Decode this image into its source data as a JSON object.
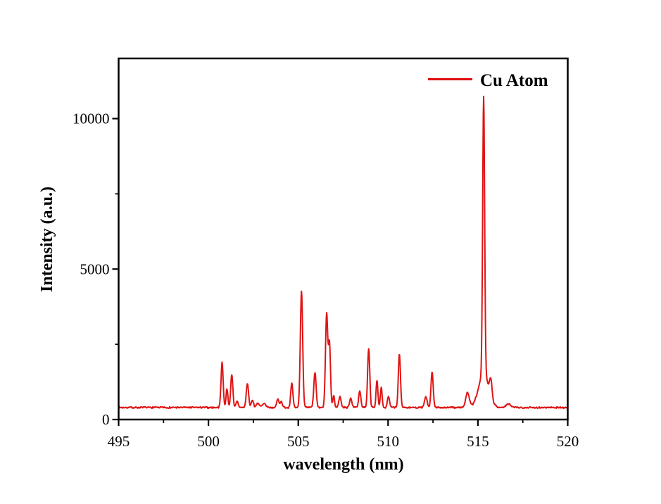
{
  "figure": {
    "background_color": "#ffffff",
    "axis_color": "#000000"
  },
  "chart_data": {
    "type": "line",
    "title": "",
    "xlabel": "wavelength (nm)",
    "ylabel": "Intensity (a.u.)",
    "xlim": [
      495,
      520
    ],
    "ylim": [
      0,
      12000
    ],
    "x_major_ticks": [
      495,
      500,
      505,
      510,
      515,
      520
    ],
    "x_minor_step": 2.5,
    "y_major_ticks": [
      0,
      5000,
      10000
    ],
    "y_minor_step": 2500,
    "grid": false,
    "frame": "box",
    "legend": {
      "position": "top-right",
      "entries": [
        {
          "label": "Cu Atom",
          "color": "#e01414"
        }
      ]
    },
    "series": [
      {
        "name": "Cu Atom",
        "color": "#e01414",
        "baseline_intensity": 400,
        "noise_amplitude": 30,
        "peaks": [
          {
            "wl": 500.76,
            "intensity": 1890,
            "width": 0.06
          },
          {
            "wl": 501.03,
            "intensity": 1030,
            "width": 0.05
          },
          {
            "wl": 501.3,
            "intensity": 1495,
            "width": 0.06
          },
          {
            "wl": 501.6,
            "intensity": 600,
            "width": 0.06
          },
          {
            "wl": 502.17,
            "intensity": 1190,
            "width": 0.065
          },
          {
            "wl": 502.45,
            "intensity": 650,
            "width": 0.06
          },
          {
            "wl": 502.75,
            "intensity": 545,
            "width": 0.08
          },
          {
            "wl": 503.1,
            "intensity": 520,
            "width": 0.1
          },
          {
            "wl": 503.86,
            "intensity": 680,
            "width": 0.06
          },
          {
            "wl": 504.05,
            "intensity": 610,
            "width": 0.06
          },
          {
            "wl": 504.64,
            "intensity": 1190,
            "width": 0.06
          },
          {
            "wl": 505.18,
            "intensity": 4280,
            "width": 0.065
          },
          {
            "wl": 505.93,
            "intensity": 1550,
            "width": 0.065
          },
          {
            "wl": 506.58,
            "intensity": 3500,
            "width": 0.065
          },
          {
            "wl": 506.74,
            "intensity": 2480,
            "width": 0.055
          },
          {
            "wl": 506.97,
            "intensity": 795,
            "width": 0.05
          },
          {
            "wl": 507.32,
            "intensity": 770,
            "width": 0.06
          },
          {
            "wl": 507.92,
            "intensity": 725,
            "width": 0.06
          },
          {
            "wl": 508.42,
            "intensity": 960,
            "width": 0.06
          },
          {
            "wl": 508.92,
            "intensity": 2360,
            "width": 0.06
          },
          {
            "wl": 509.38,
            "intensity": 1310,
            "width": 0.05
          },
          {
            "wl": 509.62,
            "intensity": 1075,
            "width": 0.05
          },
          {
            "wl": 510.02,
            "intensity": 770,
            "width": 0.06
          },
          {
            "wl": 510.63,
            "intensity": 2170,
            "width": 0.06
          },
          {
            "wl": 512.1,
            "intensity": 750,
            "width": 0.07
          },
          {
            "wl": 512.45,
            "intensity": 1590,
            "width": 0.06
          },
          {
            "wl": 514.42,
            "intensity": 890,
            "width": 0.1
          },
          {
            "wl": 515.32,
            "intensity": 9650,
            "width": 0.055
          },
          {
            "wl": 515.32,
            "intensity": 1500,
            "width": 0.28
          },
          {
            "wl": 515.72,
            "intensity": 980,
            "width": 0.07
          },
          {
            "wl": 516.7,
            "intensity": 520,
            "width": 0.12
          }
        ]
      }
    ]
  }
}
